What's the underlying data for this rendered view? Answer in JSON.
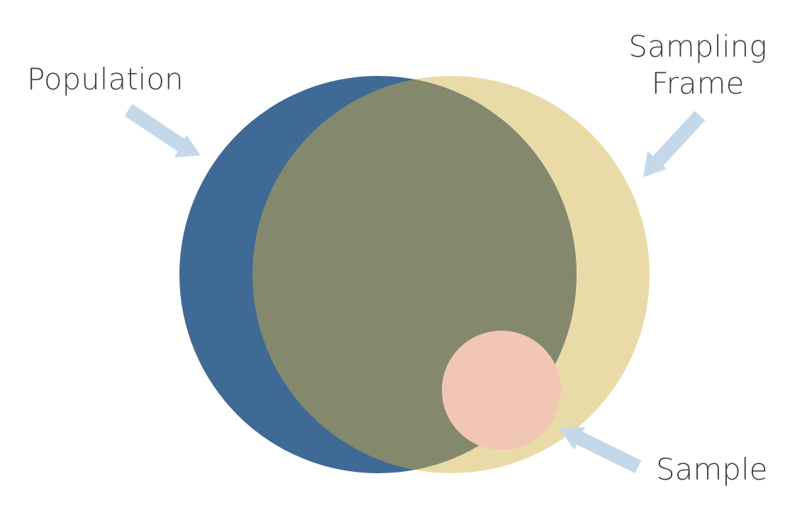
{
  "labels": {
    "population": "Population",
    "sampling_frame_line1": "Sampling",
    "sampling_frame_line2": "Frame",
    "sample": "Sample"
  },
  "colors": {
    "population": "#3f6a96",
    "sampling_frame": "#e9dba8",
    "overlap": "#84896d",
    "sample": "#f2c6b5",
    "arrow": "#c5d8ea",
    "text": "#3b3f45"
  }
}
